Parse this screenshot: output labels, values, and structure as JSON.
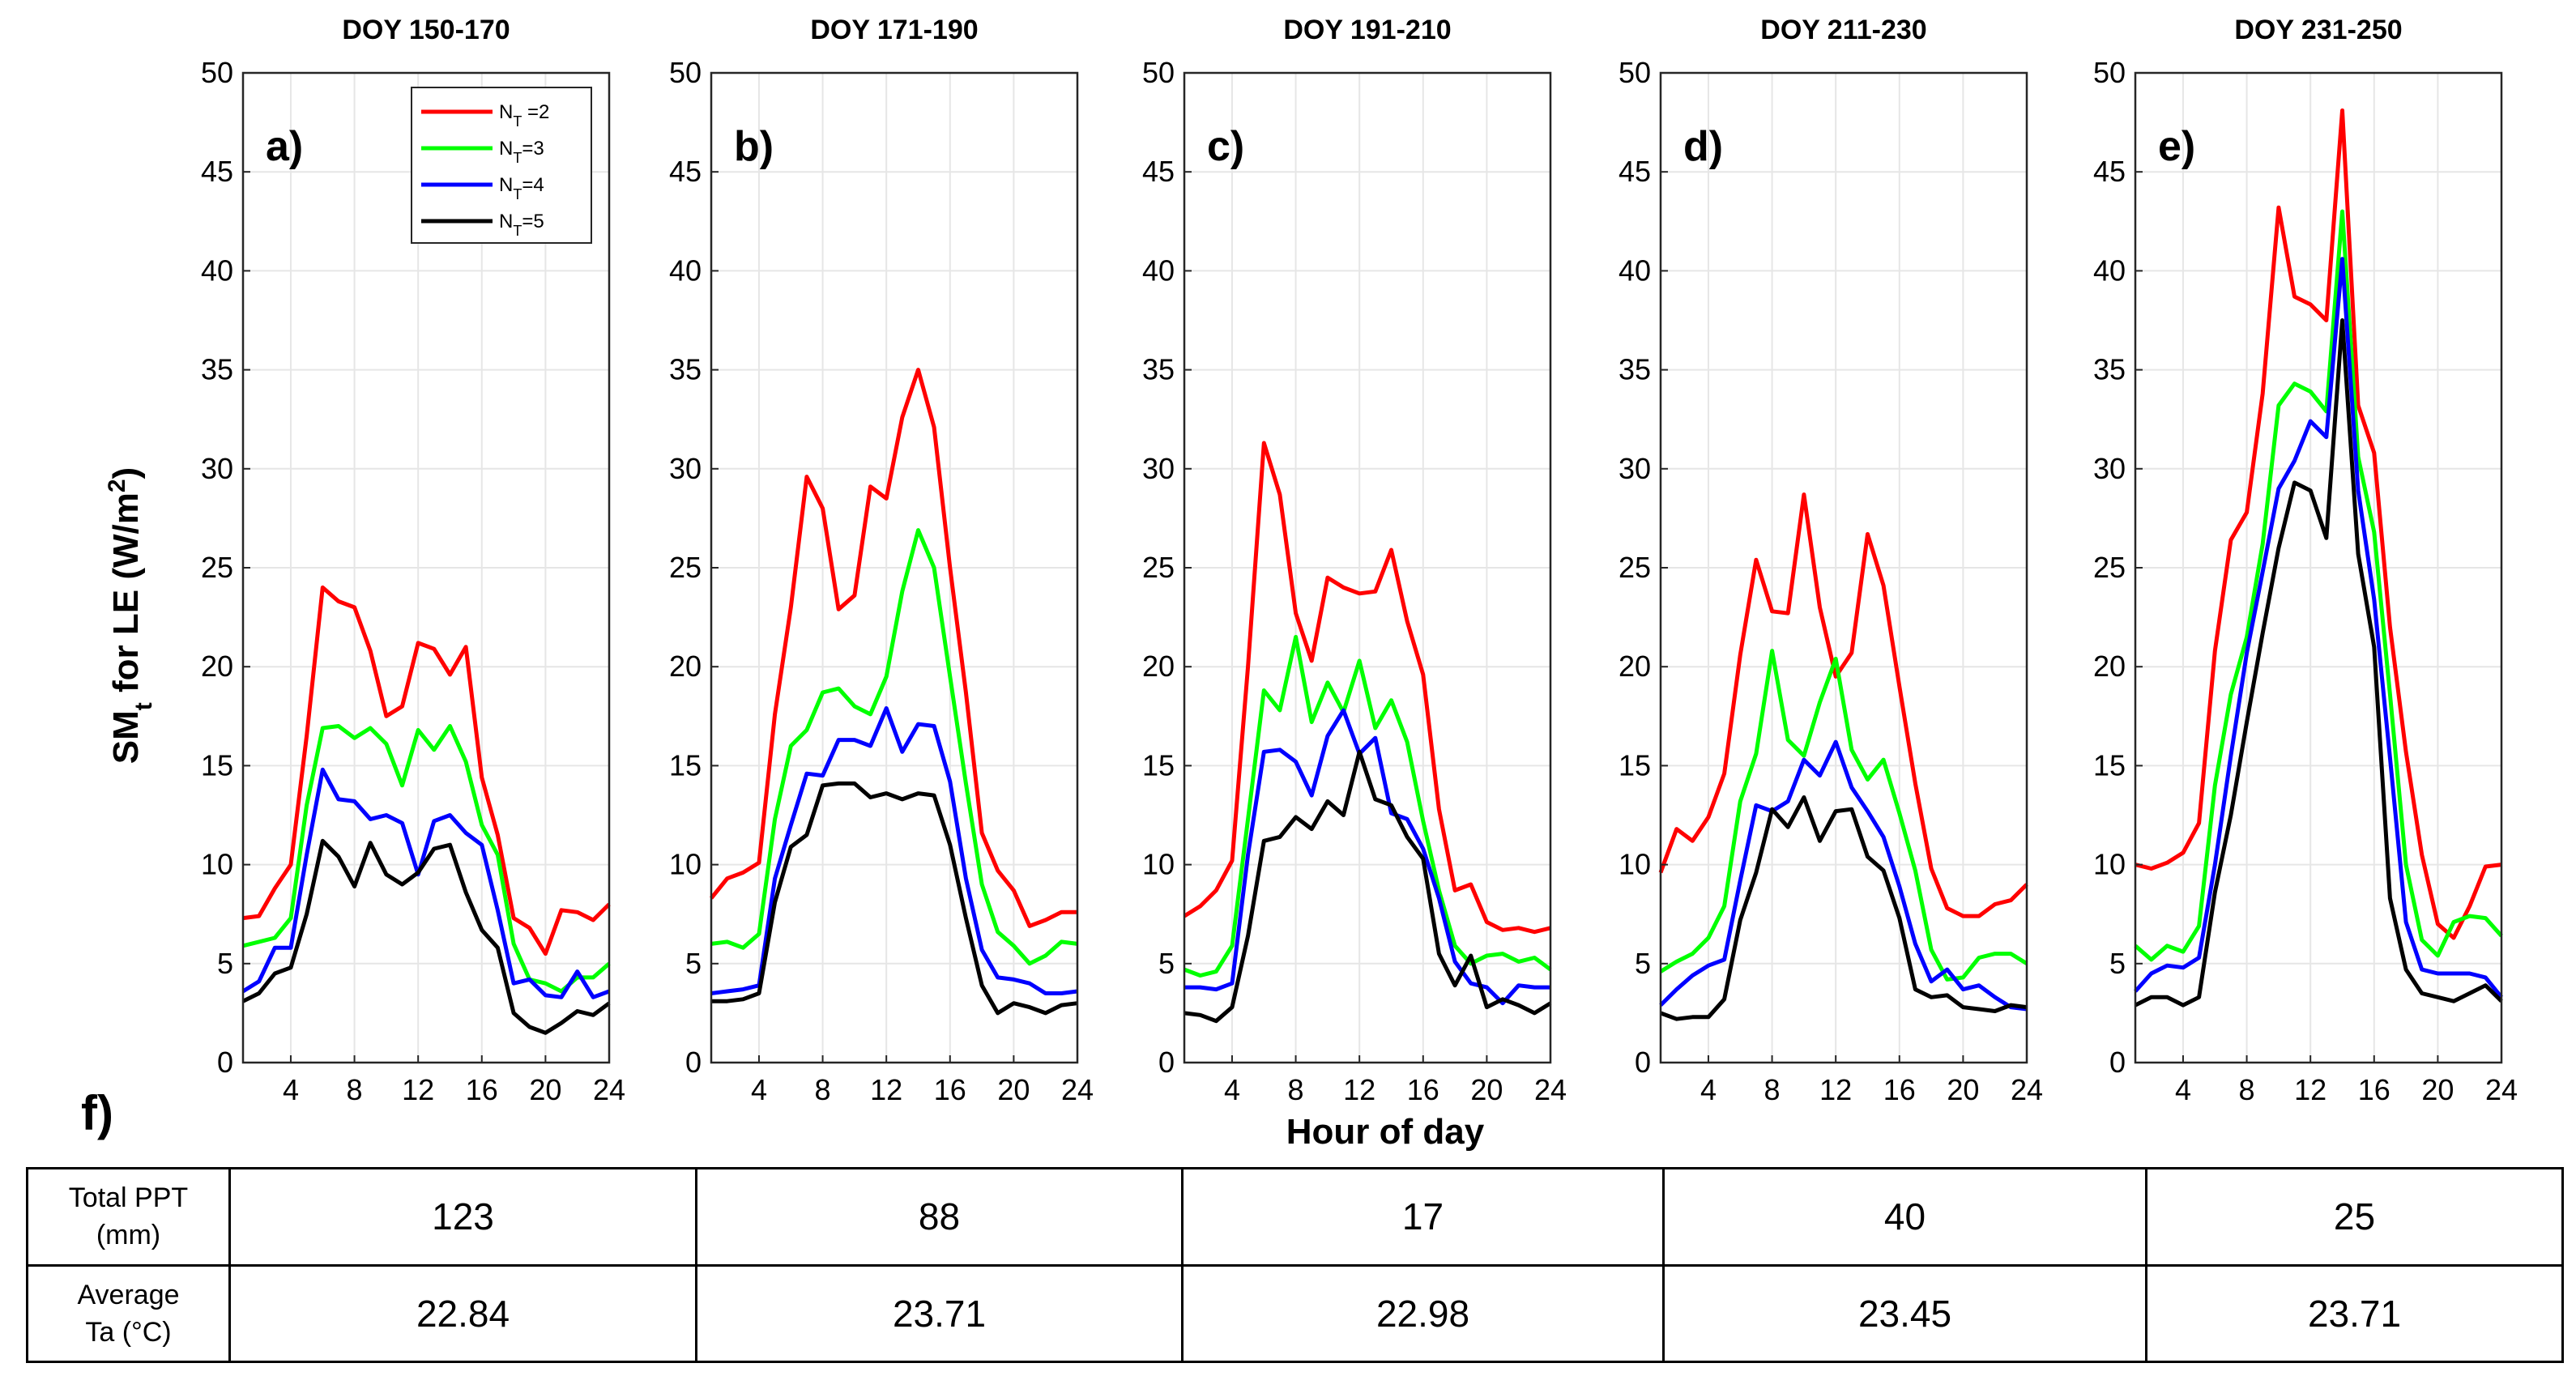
{
  "figure": {
    "ylabel_main": "SM",
    "ylabel_sub": "t",
    "ylabel_rest": " for LE (W/m",
    "ylabel_sup": "2",
    "ylabel_end": ")",
    "xlabel": "Hour of day",
    "f_label": "f)"
  },
  "legend": [
    {
      "main": "N",
      "sub": "T",
      "rest": " =2",
      "color": "#ff0000"
    },
    {
      "main": "N",
      "sub": "T",
      "rest": "=3",
      "color": "#00ff00"
    },
    {
      "main": "N",
      "sub": "T",
      "rest": "=4",
      "color": "#0000ff"
    },
    {
      "main": "N",
      "sub": "T",
      "rest": "=5",
      "color": "#000000"
    }
  ],
  "table": {
    "rows": [
      {
        "label_line1": "Total PPT",
        "label_line2": "(mm)",
        "values": [
          "123",
          "88",
          "17",
          "40",
          "25"
        ]
      },
      {
        "label_line1": "Average",
        "label_line2": "Ta (°C)",
        "values": [
          "22.84",
          "23.71",
          "22.98",
          "23.45",
          "23.71"
        ]
      }
    ]
  },
  "chart_data": [
    {
      "type": "line",
      "title": "DOY 150-170",
      "panel_label": "a)",
      "x": [
        1,
        2,
        3,
        4,
        5,
        6,
        7,
        8,
        9,
        10,
        11,
        12,
        13,
        14,
        15,
        16,
        17,
        18,
        19,
        20,
        21,
        22,
        23,
        24
      ],
      "xlim": [
        1,
        24
      ],
      "ylim": [
        0,
        50
      ],
      "xticks": [
        4,
        8,
        12,
        16,
        20,
        24
      ],
      "yticks": [
        0,
        5,
        10,
        15,
        20,
        25,
        30,
        35,
        40,
        45,
        50
      ],
      "grid": true,
      "legend_position": "top-right",
      "series": [
        {
          "name": "NT =2",
          "color": "#ff0000",
          "values": [
            7.3,
            7.4,
            8.8,
            10.0,
            16.5,
            24.0,
            23.3,
            23.0,
            20.8,
            17.5,
            18.0,
            21.2,
            20.9,
            19.6,
            21.0,
            14.4,
            11.5,
            7.3,
            6.8,
            5.5,
            7.7,
            7.6,
            7.2,
            8.0
          ]
        },
        {
          "name": "NT=3",
          "color": "#00ff00",
          "values": [
            5.9,
            6.1,
            6.3,
            7.3,
            13.0,
            16.9,
            17.0,
            16.4,
            16.9,
            16.1,
            14.0,
            16.8,
            15.8,
            17.0,
            15.2,
            12.0,
            10.5,
            6.0,
            4.2,
            4.0,
            3.6,
            4.3,
            4.3,
            5.0
          ]
        },
        {
          "name": "NT=4",
          "color": "#0000ff",
          "values": [
            3.6,
            4.1,
            5.8,
            5.8,
            10.5,
            14.8,
            13.3,
            13.2,
            12.3,
            12.5,
            12.1,
            9.5,
            12.2,
            12.5,
            11.6,
            11.0,
            7.7,
            4.0,
            4.2,
            3.4,
            3.3,
            4.6,
            3.3,
            3.6
          ]
        },
        {
          "name": "NT=5",
          "color": "#000000",
          "values": [
            3.1,
            3.5,
            4.5,
            4.8,
            7.5,
            11.2,
            10.4,
            8.9,
            11.1,
            9.5,
            9.0,
            9.6,
            10.8,
            11.0,
            8.6,
            6.7,
            5.8,
            2.5,
            1.8,
            1.5,
            2.0,
            2.6,
            2.4,
            3.0
          ]
        }
      ]
    },
    {
      "type": "line",
      "title": "DOY 171-190",
      "panel_label": "b)",
      "x": [
        1,
        2,
        3,
        4,
        5,
        6,
        7,
        8,
        9,
        10,
        11,
        12,
        13,
        14,
        15,
        16,
        17,
        18,
        19,
        20,
        21,
        22,
        23,
        24
      ],
      "xlim": [
        1,
        24
      ],
      "ylim": [
        0,
        50
      ],
      "xticks": [
        4,
        8,
        12,
        16,
        20,
        24
      ],
      "yticks": [
        0,
        5,
        10,
        15,
        20,
        25,
        30,
        35,
        40,
        45,
        50
      ],
      "grid": true,
      "series": [
        {
          "name": "NT =2",
          "color": "#ff0000",
          "values": [
            8.3,
            9.3,
            9.6,
            10.1,
            17.6,
            23.0,
            29.6,
            28.0,
            22.9,
            23.6,
            29.1,
            28.5,
            32.6,
            35.0,
            32.1,
            25.0,
            18.7,
            11.6,
            9.7,
            8.7,
            6.9,
            7.2,
            7.6,
            7.6
          ]
        },
        {
          "name": "NT=3",
          "color": "#00ff00",
          "values": [
            6.0,
            6.1,
            5.8,
            6.5,
            12.3,
            16.0,
            16.8,
            18.7,
            18.9,
            18.0,
            17.6,
            19.5,
            23.8,
            26.9,
            25.0,
            19.5,
            14.1,
            9.0,
            6.6,
            5.9,
            5.0,
            5.4,
            6.1,
            6.0
          ]
        },
        {
          "name": "NT=4",
          "color": "#0000ff",
          "values": [
            3.5,
            3.6,
            3.7,
            3.9,
            9.3,
            12.0,
            14.6,
            14.5,
            16.3,
            16.3,
            16.0,
            17.9,
            15.7,
            17.1,
            17.0,
            14.2,
            9.3,
            5.7,
            4.3,
            4.2,
            4.0,
            3.5,
            3.5,
            3.6
          ]
        },
        {
          "name": "NT=5",
          "color": "#000000",
          "values": [
            3.1,
            3.1,
            3.2,
            3.5,
            8.1,
            10.9,
            11.5,
            14.0,
            14.1,
            14.1,
            13.4,
            13.6,
            13.3,
            13.6,
            13.5,
            11.0,
            7.3,
            3.9,
            2.5,
            3.0,
            2.8,
            2.5,
            2.9,
            3.0
          ]
        }
      ]
    },
    {
      "type": "line",
      "title": "DOY 191-210",
      "panel_label": "c)",
      "x": [
        1,
        2,
        3,
        4,
        5,
        6,
        7,
        8,
        9,
        10,
        11,
        12,
        13,
        14,
        15,
        16,
        17,
        18,
        19,
        20,
        21,
        22,
        23,
        24
      ],
      "xlim": [
        1,
        24
      ],
      "ylim": [
        0,
        50
      ],
      "xticks": [
        4,
        8,
        12,
        16,
        20,
        24
      ],
      "yticks": [
        0,
        5,
        10,
        15,
        20,
        25,
        30,
        35,
        40,
        45,
        50
      ],
      "grid": true,
      "series": [
        {
          "name": "NT =2",
          "color": "#ff0000",
          "values": [
            7.4,
            7.9,
            8.7,
            10.2,
            20.0,
            31.3,
            28.7,
            22.7,
            20.3,
            24.5,
            24.0,
            23.7,
            23.8,
            25.9,
            22.3,
            19.6,
            12.8,
            8.7,
            9.0,
            7.1,
            6.7,
            6.8,
            6.6,
            6.8
          ]
        },
        {
          "name": "NT=3",
          "color": "#00ff00",
          "values": [
            4.7,
            4.4,
            4.6,
            5.9,
            12.3,
            18.8,
            17.8,
            21.5,
            17.2,
            19.2,
            17.7,
            20.3,
            16.9,
            18.3,
            16.2,
            12.2,
            8.7,
            5.9,
            5.0,
            5.4,
            5.5,
            5.1,
            5.3,
            4.7
          ]
        },
        {
          "name": "NT=4",
          "color": "#0000ff",
          "values": [
            3.8,
            3.8,
            3.7,
            4.0,
            10.5,
            15.7,
            15.8,
            15.2,
            13.5,
            16.5,
            17.8,
            15.6,
            16.4,
            12.6,
            12.3,
            10.8,
            8.3,
            5.1,
            4.0,
            3.8,
            3.0,
            3.9,
            3.8,
            3.8
          ]
        },
        {
          "name": "NT=5",
          "color": "#000000",
          "values": [
            2.5,
            2.4,
            2.1,
            2.8,
            6.4,
            11.2,
            11.4,
            12.4,
            11.8,
            13.2,
            12.5,
            15.7,
            13.3,
            13.0,
            11.4,
            10.3,
            5.5,
            3.9,
            5.4,
            2.8,
            3.2,
            2.9,
            2.5,
            3.0
          ]
        }
      ]
    },
    {
      "type": "line",
      "title": "DOY 211-230",
      "panel_label": "d)",
      "x": [
        1,
        2,
        3,
        4,
        5,
        6,
        7,
        8,
        9,
        10,
        11,
        12,
        13,
        14,
        15,
        16,
        17,
        18,
        19,
        20,
        21,
        22,
        23,
        24
      ],
      "xlim": [
        1,
        24
      ],
      "ylim": [
        0,
        50
      ],
      "xticks": [
        4,
        8,
        12,
        16,
        20,
        24
      ],
      "yticks": [
        0,
        5,
        10,
        15,
        20,
        25,
        30,
        35,
        40,
        45,
        50
      ],
      "grid": true,
      "series": [
        {
          "name": "NT =2",
          "color": "#ff0000",
          "values": [
            9.6,
            11.8,
            11.2,
            12.4,
            14.6,
            20.6,
            25.4,
            22.8,
            22.7,
            28.7,
            23.0,
            19.5,
            20.7,
            26.7,
            24.1,
            19.0,
            14.1,
            9.8,
            7.8,
            7.4,
            7.4,
            8.0,
            8.2,
            9.0
          ]
        },
        {
          "name": "NT=3",
          "color": "#00ff00",
          "values": [
            4.6,
            5.1,
            5.5,
            6.3,
            7.9,
            13.2,
            15.6,
            20.8,
            16.3,
            15.5,
            18.2,
            20.4,
            15.8,
            14.3,
            15.3,
            12.6,
            9.7,
            5.7,
            4.2,
            4.3,
            5.3,
            5.5,
            5.5,
            5.0
          ]
        },
        {
          "name": "NT=4",
          "color": "#0000ff",
          "values": [
            2.9,
            3.7,
            4.4,
            4.9,
            5.2,
            9.2,
            13.0,
            12.7,
            13.2,
            15.3,
            14.5,
            16.2,
            13.9,
            12.7,
            11.4,
            8.9,
            6.0,
            4.1,
            4.7,
            3.7,
            3.9,
            3.3,
            2.8,
            2.7
          ]
        },
        {
          "name": "NT=5",
          "color": "#000000",
          "values": [
            2.5,
            2.2,
            2.3,
            2.3,
            3.2,
            7.2,
            9.6,
            12.8,
            11.9,
            13.4,
            11.2,
            12.7,
            12.8,
            10.4,
            9.7,
            7.3,
            3.7,
            3.3,
            3.4,
            2.8,
            2.7,
            2.6,
            2.9,
            2.8
          ]
        }
      ]
    },
    {
      "type": "line",
      "title": "DOY 231-250",
      "panel_label": "e)",
      "x": [
        1,
        2,
        3,
        4,
        5,
        6,
        7,
        8,
        9,
        10,
        11,
        12,
        13,
        14,
        15,
        16,
        17,
        18,
        19,
        20,
        21,
        22,
        23,
        24
      ],
      "xlim": [
        1,
        24
      ],
      "ylim": [
        0,
        50
      ],
      "xticks": [
        4,
        8,
        12,
        16,
        20,
        24
      ],
      "yticks": [
        0,
        5,
        10,
        15,
        20,
        25,
        30,
        35,
        40,
        45,
        50
      ],
      "grid": true,
      "series": [
        {
          "name": "NT =2",
          "color": "#ff0000",
          "values": [
            10.0,
            9.8,
            10.1,
            10.6,
            12.1,
            20.8,
            26.4,
            27.8,
            33.8,
            43.2,
            38.7,
            38.3,
            37.5,
            48.1,
            33.2,
            30.8,
            22.0,
            15.7,
            10.5,
            7.0,
            6.3,
            7.9,
            9.9,
            10.0
          ]
        },
        {
          "name": "NT=3",
          "color": "#00ff00",
          "values": [
            5.9,
            5.2,
            5.9,
            5.6,
            6.9,
            14.0,
            18.6,
            21.5,
            26.2,
            33.2,
            34.3,
            33.9,
            32.9,
            43.0,
            30.6,
            26.8,
            18.6,
            10.0,
            6.2,
            5.4,
            7.1,
            7.4,
            7.3,
            6.4
          ]
        },
        {
          "name": "NT=4",
          "color": "#0000ff",
          "values": [
            3.6,
            4.5,
            4.9,
            4.8,
            5.3,
            10.0,
            15.5,
            20.7,
            24.8,
            29.0,
            30.4,
            32.4,
            31.6,
            40.6,
            28.9,
            23.4,
            15.4,
            7.1,
            4.7,
            4.5,
            4.5,
            4.5,
            4.3,
            3.3
          ]
        },
        {
          "name": "NT=5",
          "color": "#000000",
          "values": [
            2.9,
            3.3,
            3.3,
            2.9,
            3.3,
            8.6,
            12.5,
            17.2,
            21.7,
            26.0,
            29.3,
            28.9,
            26.5,
            37.5,
            25.7,
            21.0,
            8.3,
            4.7,
            3.5,
            3.3,
            3.1,
            3.5,
            3.9,
            3.1
          ]
        }
      ]
    }
  ]
}
